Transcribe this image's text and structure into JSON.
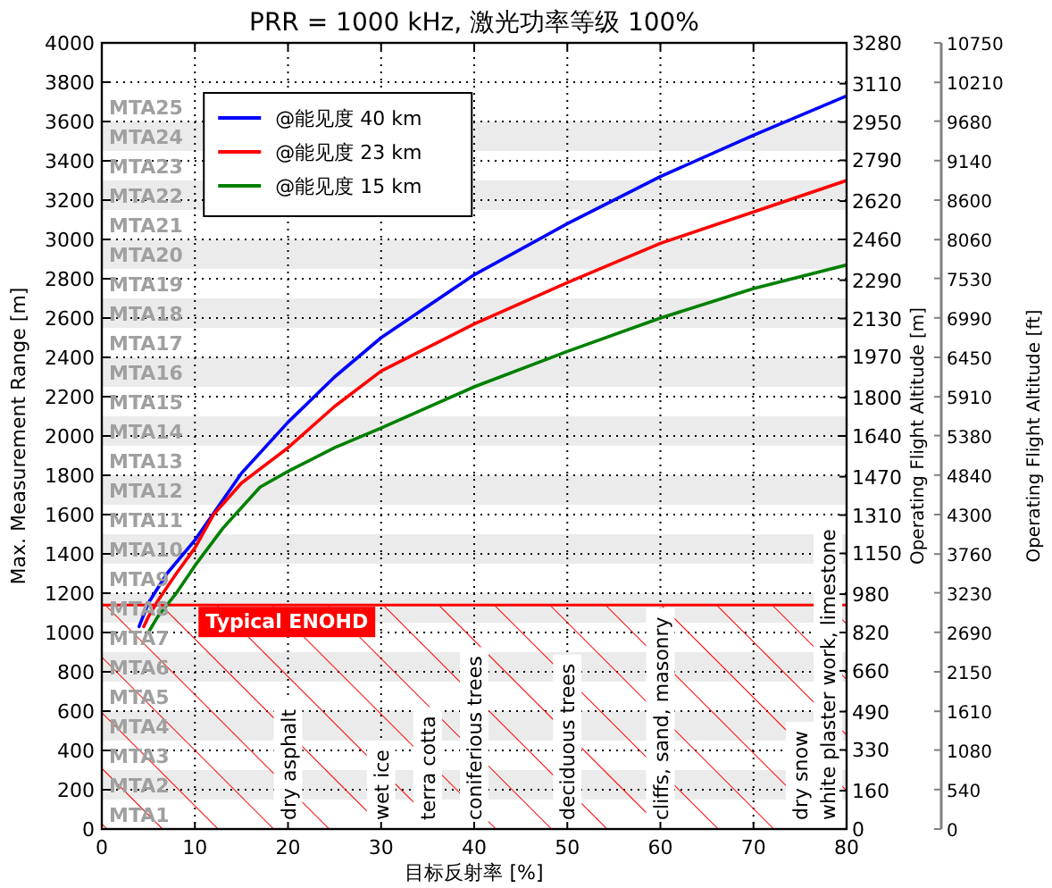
{
  "chart_data": {
    "type": "line",
    "title": "PRR = 1000 kHz, 激光功率等级 100%",
    "xlabel": "目标反射率 [%]",
    "ylabel": "Max. Measurement Range [m]",
    "y2label": "Operating Flight Altitude [m]",
    "y3label": "Operating Flight Altitude [ft]",
    "xlim": [
      0,
      80
    ],
    "xticks": [
      0,
      10,
      20,
      30,
      40,
      50,
      60,
      70,
      80
    ],
    "ylim": [
      0,
      4000
    ],
    "yticks": [
      0,
      200,
      400,
      600,
      800,
      1000,
      1200,
      1400,
      1600,
      1800,
      2000,
      2200,
      2400,
      2600,
      2800,
      3000,
      3200,
      3400,
      3600,
      3800,
      4000
    ],
    "y2lim": [
      0,
      3280
    ],
    "y2ticks": [
      0,
      160,
      330,
      490,
      660,
      820,
      980,
      1150,
      1310,
      1470,
      1640,
      1800,
      1970,
      2130,
      2290,
      2460,
      2620,
      2790,
      2950,
      3110,
      3280
    ],
    "y3lim": [
      0,
      10750
    ],
    "y3ticks": [
      0,
      540,
      1080,
      1610,
      2150,
      2690,
      3230,
      3760,
      4300,
      4840,
      5380,
      5910,
      6450,
      6990,
      7530,
      8060,
      8600,
      9140,
      9680,
      10210,
      10750
    ],
    "grid": true,
    "legend": "top left",
    "line_style": "solid",
    "series": [
      {
        "name": "@能见度 40 km",
        "color": "#0000ff",
        "x": [
          4,
          5,
          7,
          10,
          15,
          20,
          25,
          30,
          40,
          50,
          60,
          70,
          80
        ],
        "values": [
          1030,
          1150,
          1300,
          1470,
          1810,
          2070,
          2300,
          2500,
          2820,
          3080,
          3320,
          3530,
          3730
        ]
      },
      {
        "name": "@能见度 23 km",
        "color": "#ff0000",
        "x": [
          4.5,
          5,
          6,
          8,
          10,
          12,
          15,
          20,
          25,
          30,
          40,
          50,
          60,
          70,
          80
        ],
        "values": [
          1030,
          1080,
          1160,
          1300,
          1430,
          1600,
          1760,
          1940,
          2150,
          2330,
          2570,
          2780,
          2980,
          3140,
          3300
        ]
      },
      {
        "name": "@能见度 15 km",
        "color": "#008000",
        "x": [
          5,
          6,
          8,
          10,
          13,
          17,
          20,
          25,
          30,
          40,
          50,
          60,
          70,
          80
        ],
        "values": [
          1000,
          1080,
          1200,
          1340,
          1530,
          1740,
          1820,
          1940,
          2040,
          2250,
          2430,
          2600,
          2750,
          2870
        ]
      }
    ],
    "bands": [
      {
        "axis": "y",
        "from": 150,
        "to": 300,
        "label": "MTA2",
        "color": "#ebebeb"
      },
      {
        "axis": "y",
        "from": 450,
        "to": 600,
        "label": "MTA4",
        "color": "#ebebeb"
      },
      {
        "axis": "y",
        "from": 750,
        "to": 900,
        "label": "MTA6",
        "color": "#ebebeb"
      },
      {
        "axis": "y",
        "from": 1050,
        "to": 1200,
        "label": "MTA8",
        "color": "#ebebeb"
      },
      {
        "axis": "y",
        "from": 1350,
        "to": 1500,
        "label": "MTA10",
        "color": "#ebebeb"
      },
      {
        "axis": "y",
        "from": 1650,
        "to": 1800,
        "label": "MTA12",
        "color": "#ebebeb"
      },
      {
        "axis": "y",
        "from": 1950,
        "to": 2100,
        "label": "MTA14",
        "color": "#ebebeb"
      },
      {
        "axis": "y",
        "from": 2250,
        "to": 2400,
        "label": "MTA16",
        "color": "#ebebeb"
      },
      {
        "axis": "y",
        "from": 2550,
        "to": 2700,
        "label": "MTA18",
        "color": "#ebebeb"
      },
      {
        "axis": "y",
        "from": 2850,
        "to": 3000,
        "label": "MTA20",
        "color": "#ebebeb"
      },
      {
        "axis": "y",
        "from": 3150,
        "to": 3300,
        "label": "MTA22",
        "color": "#ebebeb"
      },
      {
        "axis": "y",
        "from": 3450,
        "to": 3600,
        "label": "MTA24",
        "color": "#ebebeb"
      },
      {
        "axis": "y",
        "from": 0,
        "to": 1140,
        "label": "Typical ENOHD",
        "color": "#ff0000"
      }
    ],
    "ref_lines": [
      {
        "axis": "y",
        "value": 1140,
        "color": "#ff0000"
      }
    ],
    "annotations": [
      "MTA1",
      "MTA3",
      "MTA5",
      "MTA7",
      "MTA9",
      "MTA11",
      "MTA13",
      "MTA15",
      "MTA17",
      "MTA19",
      "MTA21",
      "MTA23",
      "MTA25",
      {
        "text": "dry asphalt",
        "x": 20,
        "y": 0
      },
      {
        "text": "wet ice",
        "x": 30,
        "y": 0
      },
      {
        "text": "terra cotta",
        "x": 35,
        "y": 0
      },
      {
        "text": "coniferious trees",
        "x": 40,
        "y": 0
      },
      {
        "text": "deciduous trees",
        "x": 50,
        "y": 0
      },
      {
        "text": "cliffs, sand, masonry",
        "x": 60,
        "y": 0
      },
      {
        "text": "dry snow",
        "x": 75,
        "y": 0
      },
      {
        "text": "white plaster work, limestone",
        "x": 78,
        "y": 0
      }
    ]
  }
}
